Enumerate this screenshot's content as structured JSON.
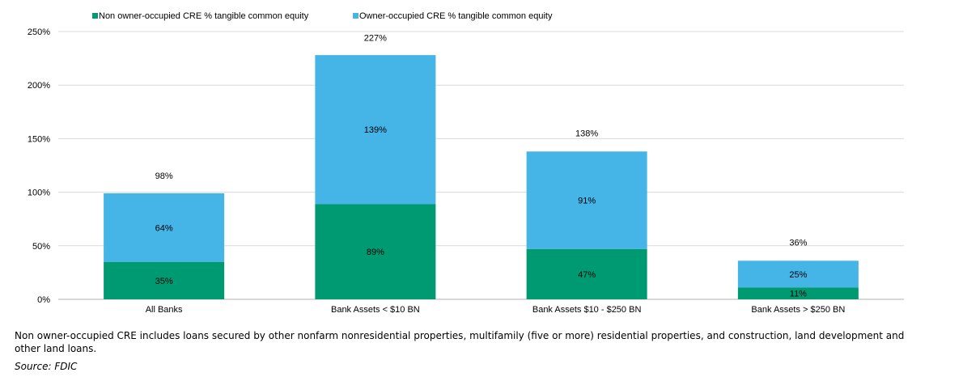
{
  "chart_data": {
    "type": "bar",
    "stacked": true,
    "categories": [
      "All Banks",
      "Bank Assets < $10 BN",
      "Bank Assets $10 - $250 BN",
      "Bank Assets > $250 BN"
    ],
    "series": [
      {
        "name": "Non owner-occupied CRE % tangible common equity",
        "color": "#009a72",
        "values": [
          35,
          89,
          47,
          11
        ],
        "labels": [
          "35%",
          "89%",
          "47%",
          "11%"
        ]
      },
      {
        "name": "Owner-occupied CRE % tangible common equity",
        "color": "#45b4e6",
        "values": [
          64,
          139,
          91,
          25
        ],
        "labels": [
          "64%",
          "139%",
          "91%",
          "25%"
        ]
      }
    ],
    "totals": [
      98,
      227,
      138,
      36
    ],
    "total_labels": [
      "98%",
      "227%",
      "138%",
      "36%"
    ],
    "ylim": [
      0,
      250
    ],
    "yticks": [
      0,
      50,
      100,
      150,
      200,
      250
    ],
    "ytick_labels": [
      "0%",
      "50%",
      "100%",
      "150%",
      "200%",
      "250%"
    ],
    "grid": true,
    "legend_position": "top-left",
    "title": "",
    "xlabel": "",
    "ylabel": ""
  },
  "footnote": "Non owner-occupied CRE includes loans secured by other nonfarm nonresidential properties, multifamily (five or more) residential properties, and construction, land development and other land loans.",
  "source": "Source: FDIC"
}
